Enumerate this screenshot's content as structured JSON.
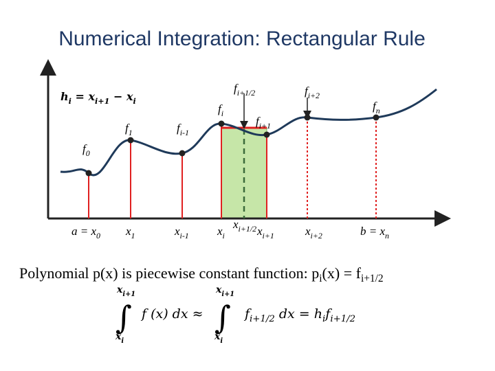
{
  "title": "Numerical Integration: Rectangular Rule",
  "spacing_formula": [
    {
      "t": "h",
      "s": "i"
    },
    {
      "t": " = x",
      "s": "i+1"
    },
    {
      "t": " − x",
      "s": "i"
    }
  ],
  "function_labels": [
    [
      {
        "t": "f",
        "s": "0"
      }
    ],
    [
      {
        "t": "f",
        "s": "1"
      }
    ],
    [
      {
        "t": "f",
        "s": "i-1"
      }
    ],
    [
      {
        "t": "f",
        "s": "i"
      }
    ],
    [
      {
        "t": "f",
        "s": "i+1/2"
      }
    ],
    [
      {
        "t": "f",
        "s": "i+1"
      }
    ],
    [
      {
        "t": "f",
        "s": "i+2"
      }
    ],
    [
      {
        "t": "f",
        "s": "n"
      }
    ]
  ],
  "x_labels": [
    [
      {
        "t": "a = x",
        "s": "0"
      }
    ],
    [
      {
        "t": "x",
        "s": "1"
      }
    ],
    [
      {
        "t": "x",
        "s": "i-1"
      }
    ],
    [
      {
        "t": "x",
        "s": "i"
      }
    ],
    [
      {
        "t": "x",
        "s": "i+1/2"
      }
    ],
    [
      {
        "t": "x",
        "s": "i+1"
      }
    ],
    [
      {
        "t": "x",
        "s": "i+2"
      }
    ],
    [
      {
        "t": "b = x",
        "s": "n"
      }
    ]
  ],
  "caption": [
    {
      "t": "Polynomial "
    },
    {
      "t": "p(x)"
    },
    {
      "t": " is piecewise constant function: "
    },
    {
      "t": "p",
      "s": "i"
    },
    {
      "t": "(x) = f",
      "s": "i+1/2"
    }
  ],
  "integral": {
    "left_lower": [
      {
        "t": "x",
        "s": "i"
      }
    ],
    "left_upper": [
      {
        "t": "x",
        "s": "i+1"
      }
    ],
    "left_integrand": [
      {
        "t": "f (x) dx ≈"
      }
    ],
    "right_lower": [
      {
        "t": "x",
        "s": "i"
      }
    ],
    "right_upper": [
      {
        "t": "x",
        "s": "i+1"
      }
    ],
    "right_integrand": [
      {
        "t": "f",
        "s": "i+1/2"
      },
      {
        "t": " dx = h",
        "s": "i"
      },
      {
        "t": "f",
        "s": "i+1/2"
      }
    ]
  }
}
